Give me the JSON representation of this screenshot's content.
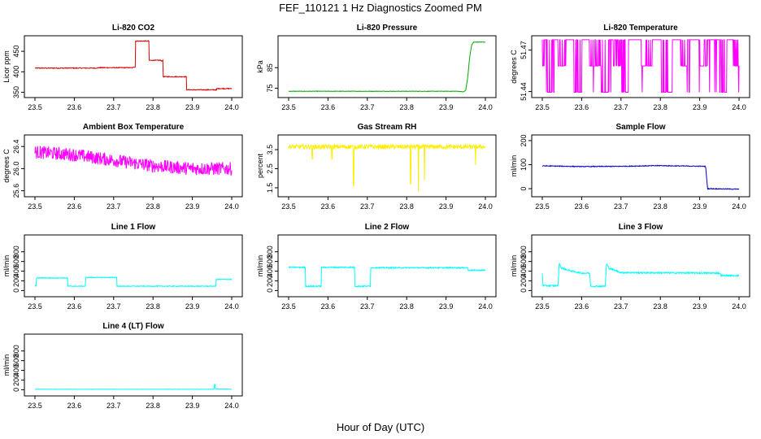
{
  "figure": {
    "title": "FEF_110121  1 Hz Diagnostics Zoomed PM",
    "xlabel": "Hour of Day (UTC)"
  },
  "chart_data": [
    {
      "type": "line",
      "title": "Li-820 CO2",
      "ylabel": "Licor ppm",
      "xlim": [
        23.5,
        24.0
      ],
      "ylim": [
        345,
        480
      ],
      "xticks": [
        23.5,
        23.6,
        23.7,
        23.8,
        23.9,
        24.0
      ],
      "xtick_labels": [
        "23.5",
        "23.6",
        "23.7",
        "23.8",
        "23.9",
        "24.0"
      ],
      "yticks": [
        350,
        400,
        450
      ],
      "ytick_labels": [
        "350",
        "400",
        "450"
      ],
      "color": "#dd0000",
      "step": true,
      "noise": 1,
      "series": [
        {
          "x": [
            23.5,
            23.66,
            23.7,
            23.75,
            23.755,
            23.785,
            23.79,
            23.82,
            23.825,
            23.88,
            23.885,
            23.96,
            23.962,
            24.0
          ],
          "y": [
            409,
            410,
            410,
            412,
            475,
            475,
            428,
            427,
            388,
            388,
            356,
            355,
            359,
            355
          ]
        }
      ]
    },
    {
      "type": "line",
      "title": "Li-820 Pressure",
      "ylabel": "kPa",
      "xlim": [
        23.5,
        24.0
      ],
      "ylim": [
        72,
        99
      ],
      "xticks": [
        23.5,
        23.6,
        23.7,
        23.8,
        23.9,
        24.0
      ],
      "xtick_labels": [
        "23.5",
        "23.6",
        "23.7",
        "23.8",
        "23.9",
        "24.0"
      ],
      "yticks": [
        75,
        85
      ],
      "ytick_labels": [
        "75",
        "85"
      ],
      "color": "#00aa00",
      "step": false,
      "noise": 0.1,
      "series": [
        {
          "x": [
            23.5,
            23.93,
            23.945,
            23.95,
            23.955,
            23.96,
            23.965,
            23.97,
            24.0
          ],
          "y": [
            73.5,
            73.5,
            73.2,
            74,
            80,
            90,
            96,
            97.5,
            97.5
          ]
        }
      ]
    },
    {
      "type": "line",
      "title": "Li-820 Temperature",
      "ylabel": "degrees C",
      "xlim": [
        23.5,
        24.0
      ],
      "ylim": [
        51.438,
        51.478
      ],
      "xticks": [
        23.5,
        23.6,
        23.7,
        23.8,
        23.9,
        24.0
      ],
      "xtick_labels": [
        "23.5",
        "23.6",
        "23.7",
        "23.8",
        "23.9",
        "24.0"
      ],
      "yticks": [
        51.44,
        51.47
      ],
      "ytick_labels": [
        "51.44",
        "51.47"
      ],
      "color": "#ff00ff",
      "step": false,
      "noise": 0,
      "levels": [
        51.4395,
        51.4585,
        51.4775
      ],
      "series": [
        {
          "x": [
            23.5,
            23.505,
            23.51,
            23.53,
            23.54,
            23.56,
            23.58,
            23.6,
            23.62,
            23.65,
            23.67,
            23.68,
            23.7,
            23.72,
            23.75,
            23.78,
            23.8,
            23.83,
            23.85,
            23.87,
            23.9,
            23.92,
            23.95,
            23.97,
            23.985,
            24.0
          ],
          "y": [
            51.4585,
            51.4775,
            51.4395,
            51.4775,
            51.4585,
            51.4775,
            51.4395,
            51.4775,
            51.4585,
            51.4395,
            51.4775,
            51.4585,
            51.4395,
            51.4775,
            51.4585,
            51.4775,
            51.4395,
            51.4775,
            51.4585,
            51.4775,
            51.4585,
            51.4775,
            51.4395,
            51.4775,
            51.4585,
            51.4585
          ]
        }
      ]
    },
    {
      "type": "line",
      "title": "Ambient Box Temperature",
      "ylabel": "degrees C",
      "xlim": [
        23.5,
        24.0
      ],
      "ylim": [
        25.55,
        26.55
      ],
      "xticks": [
        23.5,
        23.6,
        23.7,
        23.8,
        23.9,
        24.0
      ],
      "xtick_labels": [
        "23.5",
        "23.6",
        "23.7",
        "23.8",
        "23.9",
        "24.0"
      ],
      "yticks": [
        25.6,
        26.0,
        26.4
      ],
      "ytick_labels": [
        "25.6",
        "26.0",
        "26.4"
      ],
      "color": "#ff00ff",
      "step": false,
      "noise": 0.12,
      "series": [
        {
          "x": [
            23.5,
            23.6,
            23.7,
            23.8,
            23.9,
            24.0
          ],
          "y": [
            26.3,
            26.25,
            26.15,
            26.05,
            26.0,
            26.0
          ]
        }
      ]
    },
    {
      "type": "line",
      "title": "Gas Stream RH",
      "ylabel": "percent",
      "xlim": [
        23.5,
        24.0
      ],
      "ylim": [
        1.2,
        4.1
      ],
      "xticks": [
        23.5,
        23.6,
        23.7,
        23.8,
        23.9,
        24.0
      ],
      "xtick_labels": [
        "23.5",
        "23.6",
        "23.7",
        "23.8",
        "23.9",
        "24.0"
      ],
      "yticks": [
        1.5,
        2.5,
        3.5
      ],
      "ytick_labels": [
        "1.5",
        "2.5",
        "3.5"
      ],
      "color": "#ffee00",
      "step": false,
      "noise": 0.12,
      "spikes": [
        [
          23.665,
          1.6
        ],
        [
          23.81,
          1.7
        ],
        [
          23.83,
          1.3
        ],
        [
          23.845,
          1.9
        ],
        [
          23.975,
          2.7
        ],
        [
          23.61,
          3.0
        ],
        [
          23.56,
          3.0
        ]
      ],
      "series": [
        {
          "x": [
            23.5,
            24.0
          ],
          "y": [
            3.65,
            3.65
          ]
        }
      ]
    },
    {
      "type": "line",
      "title": "Sample Flow",
      "ylabel": "ml/min",
      "xlim": [
        23.5,
        24.0
      ],
      "ylim": [
        -20,
        210
      ],
      "xticks": [
        23.5,
        23.6,
        23.7,
        23.8,
        23.9,
        24.0
      ],
      "xtick_labels": [
        "23.5",
        "23.6",
        "23.7",
        "23.8",
        "23.9",
        "24.0"
      ],
      "yticks": [
        0,
        100,
        200
      ],
      "ytick_labels": [
        "0",
        "100",
        "200"
      ],
      "color": "#0000cc",
      "step": false,
      "noise": 1.5,
      "series": [
        {
          "x": [
            23.5,
            23.6,
            23.7,
            23.8,
            23.83,
            23.915,
            23.92,
            24.0
          ],
          "y": [
            95,
            92,
            93,
            96,
            95,
            93,
            0,
            -2
          ]
        }
      ]
    },
    {
      "type": "line",
      "title": "Line 1 Flow",
      "ylabel": "ml/min",
      "xlim": [
        23.5,
        24.0
      ],
      "ylim": [
        -60,
        1080
      ],
      "xticks": [
        23.5,
        23.6,
        23.7,
        23.8,
        23.9,
        24.0
      ],
      "xtick_labels": [
        "23.5",
        "23.6",
        "23.7",
        "23.8",
        "23.9",
        "24.0"
      ],
      "yticks": [
        0,
        200,
        400,
        600,
        800
      ],
      "ytick_labels": [
        "0",
        "200",
        "400",
        "600",
        "800"
      ],
      "color": "#00ffff",
      "step": true,
      "noise": 8,
      "series": [
        {
          "x": [
            23.5,
            23.503,
            23.58,
            23.583,
            23.625,
            23.628,
            23.705,
            23.708,
            23.955,
            23.96,
            24.0
          ],
          "y": [
            100,
            260,
            260,
            90,
            90,
            270,
            270,
            90,
            90,
            230,
            230
          ]
        }
      ]
    },
    {
      "type": "line",
      "title": "Line 2 Flow",
      "ylabel": "ml/min",
      "xlim": [
        23.5,
        24.0
      ],
      "ylim": [
        -60,
        1080
      ],
      "xticks": [
        23.5,
        23.6,
        23.7,
        23.8,
        23.9,
        24.0
      ],
      "xtick_labels": [
        "23.5",
        "23.6",
        "23.7",
        "23.8",
        "23.9",
        "24.0"
      ],
      "yticks": [
        0,
        200,
        400,
        600,
        800
      ],
      "ytick_labels": [
        "0",
        "200",
        "400",
        "600",
        "800"
      ],
      "color": "#00ffff",
      "step": true,
      "noise": 12,
      "series": [
        {
          "x": [
            23.5,
            23.54,
            23.543,
            23.58,
            23.583,
            23.665,
            23.668,
            23.705,
            23.708,
            23.95,
            23.955,
            24.0
          ],
          "y": [
            480,
            480,
            90,
            90,
            480,
            480,
            90,
            90,
            470,
            470,
            420,
            420
          ]
        }
      ]
    },
    {
      "type": "line",
      "title": "Line 3 Flow",
      "ylabel": "ml/min",
      "xlim": [
        23.5,
        24.0
      ],
      "ylim": [
        -60,
        1080
      ],
      "xticks": [
        23.5,
        23.6,
        23.7,
        23.8,
        23.9,
        24.0
      ],
      "xtick_labels": [
        "23.5",
        "23.6",
        "23.7",
        "23.8",
        "23.9",
        "24.0"
      ],
      "yticks": [
        0,
        200,
        400,
        600,
        800
      ],
      "ytick_labels": [
        "0",
        "200",
        "400",
        "600",
        "800"
      ],
      "color": "#00ffff",
      "step": false,
      "noise": 15,
      "series": [
        {
          "x": [
            23.5,
            23.502,
            23.505,
            23.54,
            23.543,
            23.548,
            23.57,
            23.6,
            23.62,
            23.623,
            23.66,
            23.663,
            23.67,
            23.7,
            23.95,
            23.955,
            24.0
          ],
          "y": [
            350,
            100,
            100,
            100,
            560,
            470,
            410,
            360,
            360,
            90,
            90,
            550,
            460,
            370,
            360,
            310,
            310
          ]
        }
      ]
    },
    {
      "type": "line",
      "title": "Line 4 (LT) Flow",
      "ylabel": "ml/min",
      "xlim": [
        23.5,
        24.0
      ],
      "ylim": [
        -60,
        1080
      ],
      "xticks": [
        23.5,
        23.6,
        23.7,
        23.8,
        23.9,
        24.0
      ],
      "xtick_labels": [
        "23.5",
        "23.6",
        "23.7",
        "23.8",
        "23.9",
        "24.0"
      ],
      "yticks": [
        0,
        200,
        400,
        600,
        800
      ],
      "ytick_labels": [
        "0",
        "200",
        "400",
        "600",
        "800"
      ],
      "color": "#00ffff",
      "step": false,
      "noise": 3,
      "series": [
        {
          "x": [
            23.5,
            23.955,
            23.957,
            23.959,
            23.962,
            24.0
          ],
          "y": [
            10,
            10,
            140,
            10,
            20,
            10
          ]
        }
      ]
    }
  ]
}
